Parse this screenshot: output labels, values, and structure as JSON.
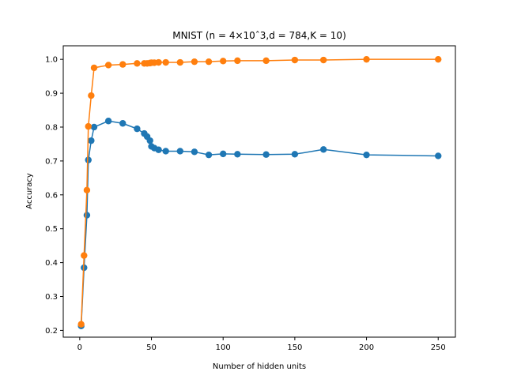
{
  "chart_data": {
    "type": "line",
    "title": "MNIST (n = 4×10ˆ3,d = 784,K = 10)",
    "xlabel": "Number of hidden units",
    "ylabel": "Accuracy",
    "xlim": [
      -11.5,
      262
    ],
    "ylim": [
      0.18,
      1.04
    ],
    "xticks": [
      0,
      50,
      100,
      150,
      200,
      250
    ],
    "yticks": [
      0.2,
      0.3,
      0.4,
      0.5,
      0.6,
      0.7,
      0.8,
      0.9,
      1.0
    ],
    "xtick_labels": [
      "0",
      "50",
      "100",
      "150",
      "200",
      "250"
    ],
    "ytick_labels": [
      "0.2",
      "0.3",
      "0.4",
      "0.5",
      "0.6",
      "0.7",
      "0.8",
      "0.9",
      "1.0"
    ],
    "grid": false,
    "series": [
      {
        "color": "#1f77b4",
        "x": [
          1,
          3,
          5,
          6,
          8,
          10,
          20,
          30,
          40,
          45,
          47,
          49,
          50,
          52,
          55,
          60,
          70,
          80,
          90,
          100,
          110,
          130,
          150,
          170,
          200,
          250
        ],
        "y": [
          0.213,
          0.385,
          0.54,
          0.703,
          0.76,
          0.8,
          0.818,
          0.811,
          0.795,
          0.781,
          0.772,
          0.76,
          0.743,
          0.738,
          0.733,
          0.729,
          0.729,
          0.727,
          0.718,
          0.721,
          0.72,
          0.719,
          0.72,
          0.734,
          0.718,
          0.715
        ]
      },
      {
        "color": "#ff7f0e",
        "x": [
          1,
          3,
          5,
          6,
          8,
          10,
          20,
          30,
          40,
          45,
          47,
          49,
          50,
          52,
          55,
          60,
          70,
          80,
          90,
          100,
          110,
          130,
          150,
          170,
          200,
          250
        ],
        "y": [
          0.218,
          0.421,
          0.614,
          0.802,
          0.893,
          0.975,
          0.983,
          0.985,
          0.988,
          0.988,
          0.988,
          0.989,
          0.99,
          0.99,
          0.991,
          0.991,
          0.991,
          0.993,
          0.993,
          0.995,
          0.996,
          0.996,
          0.998,
          0.998,
          1.0,
          1.0
        ]
      }
    ]
  }
}
